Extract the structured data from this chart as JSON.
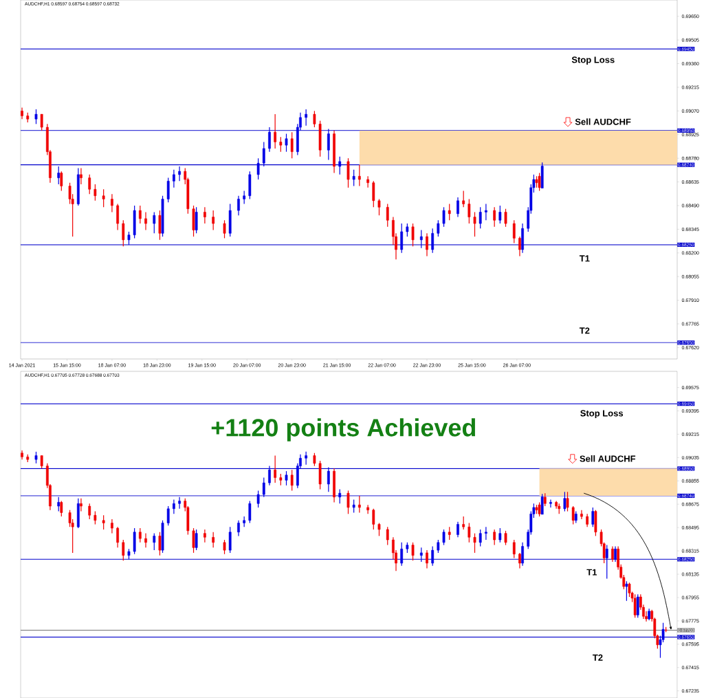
{
  "chart_data": [
    {
      "type": "candlestick",
      "title": "AUDCHF,H1  0.68597 0.68754 0.68597 0.68732",
      "categories": [
        "14 Jan 2021",
        null,
        null,
        null,
        null,
        null,
        null,
        null,
        null,
        null,
        null,
        null,
        null,
        null,
        null,
        null,
        "15 Jan 15:00",
        null,
        null,
        null,
        null,
        null,
        null,
        null,
        null,
        null,
        null,
        null,
        null,
        null,
        null,
        null,
        "18 Jan 07:00",
        null,
        null,
        null,
        null,
        null,
        null,
        null,
        null,
        null,
        null,
        null,
        null,
        null,
        null,
        null,
        "18 Jan 23:00",
        null,
        null,
        null,
        null,
        null,
        null,
        null,
        null,
        null,
        null,
        null,
        null,
        null,
        null,
        null,
        "19 Jan 15:00",
        null,
        null,
        null,
        null,
        null,
        null,
        null,
        null,
        null,
        null,
        null,
        null,
        null,
        null,
        null,
        "20 Jan 07:00",
        null,
        null,
        null,
        null,
        null,
        null,
        null,
        null,
        null,
        null,
        null,
        null,
        null,
        null,
        null,
        "20 Jan 23:00",
        null,
        null,
        null,
        null,
        null,
        null,
        null,
        null,
        null,
        null,
        null,
        null,
        null,
        null,
        null,
        "21 Jan 15:00",
        null,
        null,
        null,
        null,
        null,
        null,
        null,
        null,
        null,
        null,
        null,
        null,
        null,
        null,
        null,
        "22 Jan 07:00",
        null,
        null,
        null,
        null,
        null,
        null,
        null,
        null,
        null,
        null,
        null,
        null,
        null,
        null,
        null,
        "22 Jan 23:00",
        null,
        null,
        null,
        null,
        null,
        null,
        null,
        null,
        null,
        null,
        null,
        null,
        null,
        null,
        null,
        "25 Jan 15:00",
        null,
        null,
        null,
        null,
        null,
        null,
        null,
        null,
        null,
        null,
        null,
        null,
        null,
        null,
        null,
        "26 Jan 07:00",
        null,
        null,
        null,
        null,
        null,
        null,
        null,
        null,
        null,
        null,
        null,
        null,
        null,
        null,
        null,
        null,
        null,
        null,
        null,
        null,
        null,
        null,
        null,
        null,
        null,
        null,
        null,
        null,
        null,
        null,
        null,
        null,
        null,
        null,
        null,
        null,
        null,
        null,
        null,
        null,
        null,
        null,
        null,
        null,
        null,
        null,
        null,
        null,
        null,
        null,
        null,
        null,
        null,
        null,
        null,
        null,
        null
      ],
      "ohlc": [
        [
          0.6907,
          0.6909,
          0.6902,
          0.6904
        ],
        null,
        [
          0.6904,
          0.6906,
          0.69,
          0.6902
        ],
        null,
        null,
        [
          0.6902,
          0.6908,
          0.6899,
          0.6905
        ],
        null,
        [
          0.6905,
          0.6905,
          0.6895,
          0.6897
        ],
        null,
        [
          0.6897,
          0.6899,
          0.688,
          0.6882
        ],
        [
          0.6882,
          0.6883,
          0.6863,
          0.6866
        ],
        null,
        null,
        [
          0.6866,
          0.6873,
          0.6862,
          0.6869
        ],
        [
          0.6869,
          0.687,
          0.6858,
          0.6861
        ],
        null,
        null,
        [
          0.6861,
          0.6863,
          0.685,
          0.6853
        ],
        [
          0.6853,
          0.6856,
          0.683,
          0.685
        ],
        null,
        [
          0.685,
          0.6872,
          0.6849,
          0.6868
        ],
        [
          0.6868,
          0.6872,
          0.6862,
          0.6866
        ],
        null,
        null,
        [
          0.6866,
          0.6868,
          0.6856,
          0.6859
        ],
        null,
        [
          0.6859,
          0.6862,
          0.6852,
          0.6855
        ],
        null,
        null,
        [
          0.6855,
          0.6859,
          0.6848,
          0.6853
        ],
        null,
        null,
        [
          0.6853,
          0.6856,
          0.6845,
          0.6849
        ],
        null,
        [
          0.6849,
          0.685,
          0.6834,
          0.6838
        ],
        null,
        [
          0.6838,
          0.684,
          0.6824,
          0.6828
        ],
        null,
        [
          0.6828,
          0.6833,
          0.6825,
          0.6831
        ],
        null,
        [
          0.6831,
          0.6849,
          0.6829,
          0.6846
        ],
        null,
        [
          0.6846,
          0.6849,
          0.6838,
          0.6841
        ],
        null,
        [
          0.6841,
          0.6845,
          0.6834,
          0.6838
        ],
        null,
        null,
        [
          0.6838,
          0.6845,
          0.6832,
          0.6843
        ],
        null,
        [
          0.6843,
          0.6846,
          0.6828,
          0.6832
        ],
        [
          0.6832,
          0.6855,
          0.683,
          0.6853
        ],
        null,
        [
          0.6853,
          0.6866,
          0.6851,
          0.6864
        ],
        null,
        [
          0.6864,
          0.6871,
          0.686,
          0.6868
        ],
        null,
        [
          0.6868,
          0.6873,
          0.6864,
          0.687
        ],
        null,
        [
          0.687,
          0.6872,
          0.6862,
          0.6865
        ],
        [
          0.6865,
          0.6866,
          0.6844,
          0.6847
        ],
        null,
        [
          0.6847,
          0.6849,
          0.683,
          0.6834
        ],
        [
          0.6834,
          0.6848,
          0.6832,
          0.6845
        ],
        null,
        null,
        [
          0.6845,
          0.6848,
          0.6838,
          0.6842
        ],
        null,
        null,
        [
          0.6842,
          0.6846,
          0.6834,
          0.6838
        ],
        null,
        null,
        null,
        [
          0.6838,
          0.684,
          0.6829,
          0.6832
        ],
        null,
        [
          0.6832,
          0.685,
          0.683,
          0.6846
        ],
        null,
        null,
        [
          0.6846,
          0.6855,
          0.6843,
          0.6853
        ],
        null,
        [
          0.6853,
          0.6858,
          0.685,
          0.6855
        ],
        null,
        [
          0.6855,
          0.687,
          0.6853,
          0.6868
        ],
        null,
        null,
        [
          0.6868,
          0.6878,
          0.6865,
          0.6875
        ],
        null,
        [
          0.6875,
          0.6888,
          0.6873,
          0.6884
        ],
        null,
        [
          0.6884,
          0.6897,
          0.6882,
          0.6894
        ],
        null,
        [
          0.6894,
          0.6905,
          0.6884,
          0.6888
        ],
        null,
        [
          0.6888,
          0.6891,
          0.6882,
          0.6886
        ],
        null,
        [
          0.6886,
          0.6893,
          0.6882,
          0.689
        ],
        null,
        [
          0.689,
          0.6894,
          0.6878,
          0.6882
        ],
        null,
        [
          0.6882,
          0.6899,
          0.688,
          0.6897
        ],
        [
          0.6897,
          0.6906,
          0.6895,
          0.6903
        ],
        null,
        [
          0.6903,
          0.6908,
          0.6898,
          0.6905
        ],
        null,
        null,
        [
          0.6905,
          0.6907,
          0.6897,
          0.6899
        ],
        null,
        [
          0.6899,
          0.6901,
          0.6879,
          0.6883
        ],
        null,
        null,
        [
          0.6883,
          0.6896,
          0.6877,
          0.6893
        ],
        null,
        [
          0.6893,
          0.6895,
          0.6869,
          0.6873
        ],
        null,
        [
          0.6873,
          0.6879,
          0.6868,
          0.6876
        ],
        null,
        null,
        [
          0.6876,
          0.6878,
          0.686,
          0.6865
        ],
        null,
        [
          0.6865,
          0.6871,
          0.6861,
          0.6867
        ],
        null,
        [
          0.6867,
          0.6874,
          0.6861,
          0.6865
        ],
        null,
        null,
        [
          0.6865,
          0.6867,
          0.686,
          0.6863
        ],
        null,
        [
          0.6863,
          0.6864,
          0.6848,
          0.6852
        ],
        null,
        [
          0.6852,
          0.6853,
          0.6843,
          0.6848
        ],
        null,
        null,
        [
          0.6848,
          0.685,
          0.6836,
          0.684
        ],
        null,
        [
          0.684,
          0.6842,
          0.6825,
          0.683
        ],
        [
          0.683,
          0.6832,
          0.6816,
          0.6822
        ],
        null,
        [
          0.6822,
          0.6838,
          0.682,
          0.6833
        ],
        null,
        [
          0.6833,
          0.6838,
          0.683,
          0.6836
        ],
        null,
        [
          0.6836,
          0.6838,
          0.6824,
          0.6828
        ],
        null,
        null,
        [
          0.6828,
          0.6834,
          0.6823,
          0.683
        ],
        null,
        [
          0.683,
          0.6832,
          0.6818,
          0.6822
        ],
        null,
        [
          0.6822,
          0.6835,
          0.682,
          0.6832
        ],
        null,
        [
          0.6832,
          0.684,
          0.683,
          0.6838
        ],
        null,
        [
          0.6838,
          0.6848,
          0.6836,
          0.6846
        ],
        null,
        [
          0.6846,
          0.685,
          0.684,
          0.6844
        ],
        null,
        null,
        [
          0.6844,
          0.6854,
          0.6842,
          0.6852
        ],
        null,
        [
          0.6852,
          0.6858,
          0.6848,
          0.685
        ],
        null,
        [
          0.685,
          0.6853,
          0.6838,
          0.6842
        ],
        null,
        [
          0.6842,
          0.6845,
          0.683,
          0.6838
        ],
        null,
        [
          0.6838,
          0.6848,
          0.6835,
          0.6845
        ],
        null,
        [
          0.6845,
          0.685,
          0.684,
          0.6846
        ],
        null,
        null,
        [
          0.6846,
          0.6848,
          0.6836,
          0.684
        ],
        null,
        [
          0.684,
          0.6849,
          0.6838,
          0.6845
        ],
        null,
        [
          0.6845,
          0.6847,
          0.6836,
          0.6838
        ],
        null,
        null,
        [
          0.6838,
          0.684,
          0.6826,
          0.6829
        ],
        null,
        [
          0.6829,
          0.683,
          0.6818,
          0.6822
        ],
        [
          0.6822,
          0.6838,
          0.682,
          0.6835
        ],
        null,
        [
          0.6835,
          0.6848,
          0.6833,
          0.6846
        ],
        [
          0.6846,
          0.6862,
          0.6844,
          0.686
        ],
        [
          0.686,
          0.6868,
          0.6857,
          0.6865
        ],
        [
          0.6865,
          0.6867,
          0.686,
          0.6863
        ],
        [
          0.6867,
          0.6869,
          0.6858,
          0.686
        ],
        [
          0.68597,
          0.68754,
          0.68597,
          0.68732
        ],
        null,
        null,
        null,
        null,
        null,
        null,
        null,
        null,
        null,
        null,
        null,
        null,
        null,
        null,
        null,
        null,
        null,
        null,
        null,
        null,
        null,
        null,
        null,
        null,
        null,
        null,
        null,
        null,
        null,
        null,
        null,
        null,
        null,
        null,
        null,
        null,
        null,
        null,
        null,
        null,
        null,
        null,
        null,
        null,
        null,
        null,
        null,
        null
      ],
      "bands": [
        {
          "axis": "y",
          "from": 0.6874,
          "to": 0.6895,
          "color": "#fddcab"
        }
      ],
      "ylim": [
        0.6755,
        0.6975
      ],
      "yticks": [
        {
          "value": 0.6965,
          "label": "0.69650"
        },
        {
          "value": 0.69505,
          "label": "0.69505"
        },
        {
          "value": 0.6936,
          "label": "0.69360"
        },
        {
          "value": 0.69215,
          "label": "0.69215"
        },
        {
          "value": 0.6907,
          "label": "0.69070"
        },
        {
          "value": 0.68925,
          "label": "0.68925"
        },
        {
          "value": 0.6878,
          "label": "0.68780"
        },
        {
          "value": 0.68635,
          "label": "0.68635"
        },
        {
          "value": 0.6849,
          "label": "0.68490"
        },
        {
          "value": 0.68345,
          "label": "0.68345"
        },
        {
          "value": 0.682,
          "label": "0.68200"
        },
        {
          "value": 0.68055,
          "label": "0.68055"
        },
        {
          "value": 0.6791,
          "label": "0.67910"
        },
        {
          "value": 0.67765,
          "label": "0.67765"
        },
        {
          "value": 0.6762,
          "label": "0.67620"
        }
      ],
      "ref_lines": [
        {
          "axis": "y",
          "value": 0.6945,
          "label": "0.69450",
          "color": "#0000cc"
        },
        {
          "axis": "y",
          "value": 0.6895,
          "label": "0.68950",
          "color": "#0000cc"
        },
        {
          "axis": "y",
          "value": 0.6874,
          "label": "0.68740",
          "color": "#0000cc"
        },
        {
          "axis": "y",
          "value": 0.6825,
          "label": "0.68250",
          "color": "#0000cc"
        },
        {
          "axis": "y",
          "value": 0.6765,
          "label": "0.67650",
          "color": "#0000cc"
        }
      ],
      "annotations": [
        "Stop Loss",
        "Sell AUDCHF",
        "T1",
        "T2"
      ]
    },
    {
      "type": "candlestick",
      "title": "AUDCHF,H1  0.67705 0.67728 0.67688 0.67703",
      "tick_labels": "y",
      "categories": [
        null,
        null,
        null,
        null,
        null,
        null,
        null,
        null,
        null,
        null,
        null,
        null,
        null,
        null,
        null,
        null,
        null,
        null,
        null,
        null,
        null,
        null,
        null,
        null,
        null,
        null,
        null,
        null,
        null,
        null,
        null,
        null,
        null,
        null,
        null,
        null,
        null,
        null,
        null,
        null,
        null,
        null,
        null,
        null,
        null,
        null,
        null,
        null,
        null,
        null,
        null,
        null,
        null,
        null,
        null,
        null,
        null,
        null,
        null,
        null,
        null,
        null,
        null,
        null,
        null,
        null,
        null,
        null,
        null,
        null,
        null,
        null,
        null,
        null,
        null,
        null,
        null,
        null,
        null,
        null,
        null,
        null,
        null,
        null,
        null,
        null,
        null,
        null,
        null,
        null,
        null,
        null,
        null,
        null,
        null,
        null,
        null,
        null,
        null,
        null,
        null,
        null,
        null,
        null,
        null,
        null,
        null,
        null,
        null,
        null,
        null,
        null,
        null,
        null,
        null,
        null,
        null,
        null,
        null,
        null,
        null,
        null,
        null,
        null,
        null,
        null,
        null,
        null,
        null,
        null,
        null,
        null,
        null,
        null,
        null,
        null,
        null,
        null,
        null,
        null,
        null,
        null,
        null,
        null,
        null,
        null,
        null,
        null,
        null,
        null,
        null,
        null,
        null,
        null,
        null,
        null,
        null,
        null,
        null,
        null,
        null,
        null,
        null,
        null,
        null,
        null,
        null,
        null,
        null,
        null,
        null,
        null,
        null,
        null,
        null,
        null,
        null,
        null,
        null,
        null,
        null,
        null,
        null,
        null,
        null,
        null,
        null,
        null,
        null,
        null,
        null,
        null,
        null,
        null,
        null,
        null,
        null,
        null,
        null,
        null,
        null,
        null,
        null,
        null,
        null,
        null,
        null,
        null,
        null,
        null,
        null,
        null,
        null,
        null,
        null,
        null,
        null,
        null,
        null,
        null,
        null,
        null,
        null,
        null,
        null,
        null,
        null,
        null,
        null,
        null,
        null,
        null,
        null,
        null
      ],
      "ohlc": [
        [
          0.6907,
          0.6909,
          0.6902,
          0.6904
        ],
        null,
        [
          0.6904,
          0.6906,
          0.69,
          0.6902
        ],
        null,
        null,
        [
          0.6902,
          0.6908,
          0.6899,
          0.6905
        ],
        null,
        [
          0.6905,
          0.6905,
          0.6895,
          0.6897
        ],
        null,
        [
          0.6897,
          0.6899,
          0.688,
          0.6882
        ],
        [
          0.6882,
          0.6883,
          0.6863,
          0.6866
        ],
        null,
        null,
        [
          0.6866,
          0.6873,
          0.6862,
          0.6869
        ],
        [
          0.6869,
          0.687,
          0.6858,
          0.6861
        ],
        null,
        null,
        [
          0.6861,
          0.6863,
          0.685,
          0.6853
        ],
        [
          0.6853,
          0.6856,
          0.683,
          0.685
        ],
        null,
        [
          0.685,
          0.6872,
          0.6849,
          0.6868
        ],
        [
          0.6868,
          0.6872,
          0.6862,
          0.6866
        ],
        null,
        null,
        [
          0.6866,
          0.6868,
          0.6856,
          0.6859
        ],
        null,
        [
          0.6859,
          0.6862,
          0.6852,
          0.6855
        ],
        null,
        null,
        [
          0.6855,
          0.6859,
          0.6848,
          0.6853
        ],
        null,
        null,
        [
          0.6853,
          0.6856,
          0.6845,
          0.6849
        ],
        null,
        [
          0.6849,
          0.685,
          0.6834,
          0.6838
        ],
        null,
        [
          0.6838,
          0.684,
          0.6824,
          0.6828
        ],
        null,
        [
          0.6828,
          0.6833,
          0.6825,
          0.6831
        ],
        null,
        [
          0.6831,
          0.6849,
          0.6829,
          0.6846
        ],
        null,
        [
          0.6846,
          0.6849,
          0.6838,
          0.6841
        ],
        null,
        [
          0.6841,
          0.6845,
          0.6834,
          0.6838
        ],
        null,
        null,
        [
          0.6838,
          0.6845,
          0.6832,
          0.6843
        ],
        null,
        [
          0.6843,
          0.6846,
          0.6828,
          0.6832
        ],
        [
          0.6832,
          0.6855,
          0.683,
          0.6853
        ],
        null,
        [
          0.6853,
          0.6866,
          0.6851,
          0.6864
        ],
        null,
        [
          0.6864,
          0.6871,
          0.686,
          0.6868
        ],
        null,
        [
          0.6868,
          0.6873,
          0.6864,
          0.687
        ],
        null,
        [
          0.687,
          0.6872,
          0.6862,
          0.6865
        ],
        [
          0.6865,
          0.6866,
          0.6844,
          0.6847
        ],
        null,
        [
          0.6847,
          0.6849,
          0.683,
          0.6834
        ],
        [
          0.6834,
          0.6848,
          0.6832,
          0.6845
        ],
        null,
        null,
        [
          0.6845,
          0.6848,
          0.6838,
          0.6842
        ],
        null,
        null,
        [
          0.6842,
          0.6846,
          0.6834,
          0.6838
        ],
        null,
        null,
        null,
        [
          0.6838,
          0.684,
          0.6829,
          0.6832
        ],
        null,
        [
          0.6832,
          0.685,
          0.683,
          0.6846
        ],
        null,
        null,
        [
          0.6846,
          0.6855,
          0.6843,
          0.6853
        ],
        null,
        [
          0.6853,
          0.6858,
          0.685,
          0.6855
        ],
        null,
        [
          0.6855,
          0.687,
          0.6853,
          0.6868
        ],
        null,
        null,
        [
          0.6868,
          0.6878,
          0.6865,
          0.6875
        ],
        null,
        [
          0.6875,
          0.6888,
          0.6873,
          0.6884
        ],
        null,
        [
          0.6884,
          0.6897,
          0.6882,
          0.6894
        ],
        null,
        [
          0.6894,
          0.6905,
          0.6884,
          0.6888
        ],
        null,
        [
          0.6888,
          0.6891,
          0.6882,
          0.6886
        ],
        null,
        [
          0.6886,
          0.6893,
          0.6882,
          0.689
        ],
        null,
        [
          0.689,
          0.6894,
          0.6878,
          0.6882
        ],
        null,
        [
          0.6882,
          0.6899,
          0.688,
          0.6897
        ],
        [
          0.6897,
          0.6906,
          0.6895,
          0.6903
        ],
        null,
        [
          0.6903,
          0.6908,
          0.6898,
          0.6905
        ],
        null,
        null,
        [
          0.6905,
          0.6907,
          0.6897,
          0.6899
        ],
        null,
        [
          0.6899,
          0.6901,
          0.6879,
          0.6883
        ],
        null,
        null,
        [
          0.6883,
          0.6896,
          0.6877,
          0.6893
        ],
        null,
        [
          0.6893,
          0.6895,
          0.6869,
          0.6873
        ],
        null,
        [
          0.6873,
          0.6879,
          0.6868,
          0.6876
        ],
        null,
        null,
        [
          0.6876,
          0.6878,
          0.686,
          0.6865
        ],
        null,
        [
          0.6865,
          0.6871,
          0.6861,
          0.6867
        ],
        null,
        [
          0.6867,
          0.6874,
          0.6861,
          0.6865
        ],
        null,
        null,
        [
          0.6865,
          0.6867,
          0.686,
          0.6863
        ],
        null,
        [
          0.6863,
          0.6864,
          0.6848,
          0.6852
        ],
        null,
        [
          0.6852,
          0.6853,
          0.6843,
          0.6848
        ],
        null,
        null,
        [
          0.6848,
          0.685,
          0.6836,
          0.684
        ],
        null,
        [
          0.684,
          0.6842,
          0.6825,
          0.683
        ],
        [
          0.683,
          0.6832,
          0.6816,
          0.6822
        ],
        null,
        [
          0.6822,
          0.6838,
          0.682,
          0.6833
        ],
        null,
        [
          0.6833,
          0.6838,
          0.683,
          0.6836
        ],
        null,
        [
          0.6836,
          0.6838,
          0.6824,
          0.6828
        ],
        null,
        null,
        [
          0.6828,
          0.6834,
          0.6823,
          0.683
        ],
        null,
        [
          0.683,
          0.6832,
          0.6818,
          0.6822
        ],
        null,
        [
          0.6822,
          0.6835,
          0.682,
          0.6832
        ],
        null,
        [
          0.6832,
          0.684,
          0.683,
          0.6838
        ],
        null,
        [
          0.6838,
          0.6848,
          0.6836,
          0.6846
        ],
        null,
        [
          0.6846,
          0.685,
          0.684,
          0.6844
        ],
        null,
        null,
        [
          0.6844,
          0.6854,
          0.6842,
          0.6852
        ],
        null,
        [
          0.6852,
          0.6858,
          0.6848,
          0.685
        ],
        null,
        [
          0.685,
          0.6853,
          0.6838,
          0.6842
        ],
        null,
        [
          0.6842,
          0.6845,
          0.683,
          0.6838
        ],
        null,
        [
          0.6838,
          0.6848,
          0.6835,
          0.6845
        ],
        null,
        [
          0.6845,
          0.685,
          0.684,
          0.6846
        ],
        null,
        null,
        [
          0.6846,
          0.6848,
          0.6836,
          0.684
        ],
        null,
        [
          0.684,
          0.6849,
          0.6838,
          0.6845
        ],
        null,
        [
          0.6845,
          0.6847,
          0.6836,
          0.6838
        ],
        null,
        null,
        [
          0.6838,
          0.684,
          0.6826,
          0.6829
        ],
        null,
        [
          0.6829,
          0.683,
          0.6818,
          0.6822
        ],
        [
          0.6822,
          0.6838,
          0.682,
          0.6835
        ],
        null,
        [
          0.6835,
          0.6848,
          0.6833,
          0.6846
        ],
        [
          0.6846,
          0.6862,
          0.6844,
          0.686
        ],
        [
          0.686,
          0.6868,
          0.6857,
          0.6865
        ],
        [
          0.6865,
          0.6867,
          0.686,
          0.6863
        ],
        [
          0.6867,
          0.6869,
          0.6858,
          0.686
        ],
        [
          0.68597,
          0.68754,
          0.68597,
          0.68732
        ],
        [
          0.6873,
          0.6876,
          0.6866,
          0.6868
        ],
        null,
        [
          0.6868,
          0.6871,
          0.6865,
          0.6869
        ],
        null,
        [
          0.6869,
          0.687,
          0.6864,
          0.6866
        ],
        [
          0.6866,
          0.6868,
          0.686,
          0.6864
        ],
        null,
        [
          0.6864,
          0.6877,
          0.6862,
          0.6872
        ],
        [
          0.6872,
          0.6877,
          0.6862,
          0.6865
        ],
        null,
        [
          0.6865,
          0.6866,
          0.6852,
          0.6855
        ],
        [
          0.6855,
          0.6862,
          0.6853,
          0.686
        ],
        null,
        [
          0.686,
          0.6863,
          0.6856,
          0.6858
        ],
        null,
        [
          0.6858,
          0.686,
          0.685,
          0.6852
        ],
        null,
        [
          0.6852,
          0.6865,
          0.685,
          0.6862
        ],
        [
          0.6862,
          0.6863,
          0.6843,
          0.6846
        ],
        null,
        [
          0.6846,
          0.6848,
          0.6835,
          0.6837
        ],
        [
          0.6837,
          0.6838,
          0.6822,
          0.6826
        ],
        [
          0.6826,
          0.6836,
          0.681,
          0.6833
        ],
        null,
        [
          0.6833,
          0.6835,
          0.6823,
          0.6825
        ],
        [
          0.6825,
          0.6835,
          0.6823,
          0.6833
        ],
        [
          0.6833,
          0.6835,
          0.6817,
          0.6819
        ],
        [
          0.6819,
          0.6821,
          0.681,
          0.6811
        ],
        [
          0.6811,
          0.6813,
          0.6802,
          0.6804
        ],
        [
          0.6804,
          0.6808,
          0.6793,
          0.6806
        ],
        [
          0.6806,
          0.6807,
          0.6796,
          0.6799
        ],
        [
          0.6799,
          0.68,
          0.6792,
          0.6795
        ],
        [
          0.6795,
          0.6798,
          0.678,
          0.6782
        ],
        [
          0.6782,
          0.6798,
          0.678,
          0.6796
        ],
        [
          0.6796,
          0.6798,
          0.6786,
          0.6788
        ],
        [
          0.6788,
          0.679,
          0.6779,
          0.6781
        ],
        [
          0.6781,
          0.6785,
          0.6777,
          0.6779
        ],
        [
          0.6779,
          0.6787,
          0.6778,
          0.6785
        ],
        [
          0.6785,
          0.6786,
          0.6777,
          0.6779
        ],
        [
          0.6779,
          0.678,
          0.6764,
          0.6766
        ],
        [
          0.6766,
          0.6767,
          0.6756,
          0.6759
        ],
        [
          0.6759,
          0.6766,
          0.6749,
          0.6763
        ],
        [
          0.6763,
          0.6776,
          0.6761,
          0.6771
        ],
        [
          0.67705,
          0.67728,
          0.67688,
          0.67703
        ],
        null,
        null,
        null,
        null
      ],
      "bands": [
        {
          "axis": "y",
          "from": 0.6874,
          "to": 0.6895,
          "color": "#fddcab"
        }
      ],
      "ylim": [
        0.6718,
        0.697
      ],
      "yticks": [
        {
          "value": 0.69575,
          "label": "0.69575"
        },
        {
          "value": 0.69395,
          "label": "0.69395"
        },
        {
          "value": 0.69215,
          "label": "0.69215"
        },
        {
          "value": 0.69035,
          "label": "0.69035"
        },
        {
          "value": 0.68855,
          "label": "0.68855"
        },
        {
          "value": 0.68675,
          "label": "0.68675"
        },
        {
          "value": 0.68495,
          "label": "0.68495"
        },
        {
          "value": 0.68315,
          "label": "0.68315"
        },
        {
          "value": 0.68135,
          "label": "0.68135"
        },
        {
          "value": 0.67955,
          "label": "0.67955"
        },
        {
          "value": 0.67775,
          "label": "0.67775"
        },
        {
          "value": 0.67595,
          "label": "0.67595"
        },
        {
          "value": 0.67415,
          "label": "0.67415"
        },
        {
          "value": 0.67235,
          "label": "0.67235"
        }
      ],
      "ref_lines": [
        {
          "axis": "y",
          "value": 0.6945,
          "label": "0.69450",
          "color": "#0000cc"
        },
        {
          "axis": "y",
          "value": 0.6895,
          "label": "0.68950",
          "color": "#0000cc"
        },
        {
          "axis": "y",
          "value": 0.6874,
          "label": "0.68740",
          "color": "#0000cc"
        },
        {
          "axis": "y",
          "value": 0.6825,
          "label": "0.68250",
          "color": "#0000cc"
        },
        {
          "axis": "y",
          "value": 0.6765,
          "label": "0.67650",
          "color": "#0000cc"
        },
        {
          "axis": "y",
          "value": 0.67703,
          "label": "0.67703",
          "color": "#808080"
        }
      ],
      "annotations": [
        "+1120 points Achieved",
        "Stop Loss",
        "Sell AUDCHF",
        "T1",
        "T2"
      ]
    }
  ]
}
